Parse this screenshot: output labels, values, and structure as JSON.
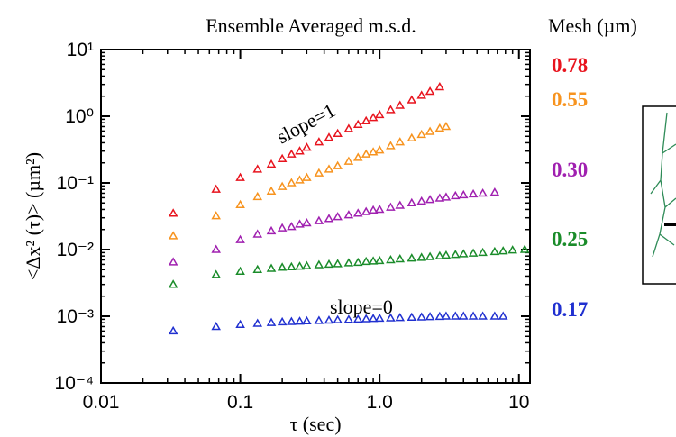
{
  "chart_data": {
    "type": "scatter",
    "title": "Ensemble Averaged m.s.d.",
    "x_label": "τ (sec)",
    "y_label": "<Δx² (τ)> (µm²)",
    "legend_title": "Mesh (µm)",
    "annotations": [
      "slope=1",
      "slope=0"
    ],
    "x_log": true,
    "y_log": true,
    "xlim": [
      0.01,
      12
    ],
    "ylim": [
      0.0001,
      10
    ],
    "xticks": [
      0.01,
      0.1,
      {
        "value": 1,
        "label": "1.0"
      },
      10
    ],
    "yticks": [
      {
        "value": 0.0001,
        "label": "10⁻⁴"
      },
      {
        "value": 0.001,
        "label": "10⁻³"
      },
      {
        "value": 0.01,
        "label": "10⁻²"
      },
      {
        "value": 0.1,
        "label": "10⁻¹"
      },
      {
        "value": 1,
        "label": "10⁰"
      },
      {
        "value": 10,
        "label": "10¹"
      }
    ],
    "x": [
      0.033,
      0.067,
      0.1,
      0.133,
      0.167,
      0.2,
      0.233,
      0.267,
      0.3,
      0.367,
      0.433,
      0.5,
      0.6,
      0.7,
      0.8,
      0.9,
      1.0,
      1.2,
      1.4,
      1.7,
      2.0,
      2.3,
      2.7,
      3.0,
      3.5,
      4.0,
      4.7,
      5.5,
      6.7,
      7.7,
      9.0,
      11
    ],
    "series": [
      {
        "name": "0.78",
        "color": "#e8141e",
        "values": [
          0.035,
          0.08,
          0.12,
          0.16,
          0.19,
          0.23,
          0.27,
          0.3,
          0.34,
          0.41,
          0.48,
          0.55,
          0.65,
          0.75,
          0.85,
          0.95,
          1.05,
          1.25,
          1.45,
          1.75,
          2.05,
          2.35,
          2.75,
          null,
          null,
          null,
          null,
          null,
          null,
          null,
          null,
          null
        ]
      },
      {
        "name": "0.55",
        "color": "#f7931e",
        "values": [
          0.016,
          0.032,
          0.047,
          0.062,
          0.075,
          0.088,
          0.1,
          0.11,
          0.12,
          0.14,
          0.16,
          0.18,
          0.21,
          0.24,
          0.27,
          0.29,
          0.31,
          0.36,
          0.41,
          0.47,
          0.53,
          0.59,
          0.66,
          0.7,
          null,
          null,
          null,
          null,
          null,
          null,
          null,
          null
        ]
      },
      {
        "name": "0.30",
        "color": "#a020b0",
        "values": [
          0.0065,
          0.01,
          0.014,
          0.017,
          0.019,
          0.021,
          0.022,
          0.024,
          0.025,
          0.027,
          0.029,
          0.031,
          0.033,
          0.035,
          0.037,
          0.039,
          0.04,
          0.043,
          0.046,
          0.05,
          0.053,
          0.056,
          0.059,
          0.061,
          0.064,
          0.066,
          0.068,
          0.07,
          0.072,
          null,
          null,
          null
        ]
      },
      {
        "name": "0.25",
        "color": "#1a8c2a",
        "values": [
          0.003,
          0.0042,
          0.0047,
          0.005,
          0.0052,
          0.0054,
          0.0055,
          0.0056,
          0.0057,
          0.0059,
          0.006,
          0.0061,
          0.0063,
          0.0064,
          0.0066,
          0.0067,
          0.0068,
          0.007,
          0.0072,
          0.0074,
          0.0076,
          0.0078,
          0.008,
          0.0082,
          0.0084,
          0.0086,
          0.0088,
          0.009,
          0.0093,
          0.0095,
          0.0098,
          0.01
        ]
      },
      {
        "name": "0.17",
        "color": "#2030d0",
        "values": [
          0.0006,
          0.0007,
          0.00075,
          0.00078,
          0.0008,
          0.00082,
          0.00083,
          0.00084,
          0.00085,
          0.00086,
          0.00087,
          0.00088,
          0.00089,
          0.0009,
          0.00091,
          0.00092,
          0.00093,
          0.00094,
          0.00095,
          0.00096,
          0.00097,
          0.00098,
          0.00099,
          0.001,
          0.001,
          0.001,
          0.001,
          0.001,
          0.001,
          0.001,
          null,
          null
        ]
      }
    ]
  }
}
